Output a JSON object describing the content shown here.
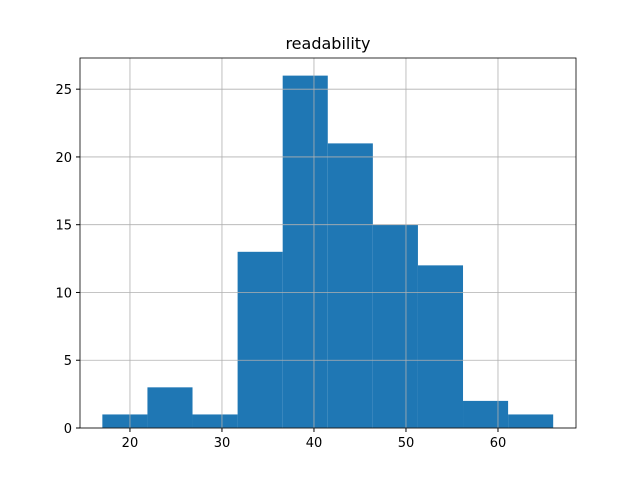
{
  "chart_data": {
    "type": "histogram",
    "title": "readability",
    "bins": [
      17,
      21.9,
      26.8,
      31.7,
      36.6,
      41.5,
      46.4,
      51.3,
      56.2,
      61.1,
      66
    ],
    "values": [
      1,
      3,
      1,
      13,
      26,
      21,
      15,
      12,
      2,
      1
    ],
    "color": "#1f77b4",
    "xlim": [
      14.57,
      68.48
    ],
    "xticks": [
      20,
      30,
      40,
      50,
      60
    ],
    "ylim": [
      0,
      27.3
    ],
    "yticks": [
      0,
      5,
      10,
      15,
      20,
      25
    ],
    "grid": true
  }
}
